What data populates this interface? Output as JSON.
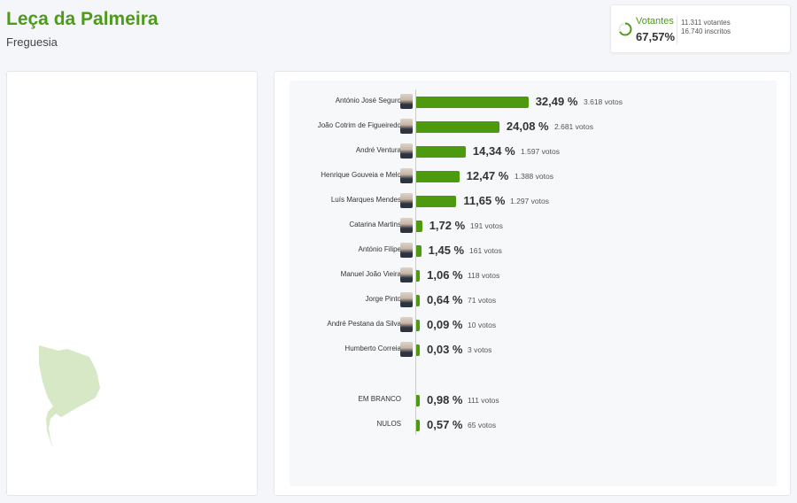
{
  "header": {
    "title": "Leça da Palmeira",
    "subtitle": "Freguesia"
  },
  "turnout": {
    "label": "Votantes",
    "percent": "67,57%",
    "percent_value": 67.57,
    "voters": "11.311 votantes",
    "registered": "16.740 inscritos"
  },
  "colors": {
    "accent": "#4e9a1a",
    "bar": "#4e9a0e",
    "map_fill": "#d7e8c6"
  },
  "results": [
    {
      "name": "António José Seguro",
      "pct": "32,49 %",
      "value": 32.49,
      "votes": "3.618 votos"
    },
    {
      "name": "João Cotrim de Figueiredo",
      "pct": "24,08 %",
      "value": 24.08,
      "votes": "2.681 votos"
    },
    {
      "name": "André Ventura",
      "pct": "14,34 %",
      "value": 14.34,
      "votes": "1.597 votos"
    },
    {
      "name": "Henrique Gouveia e Melo",
      "pct": "12,47 %",
      "value": 12.47,
      "votes": "1.388 votos"
    },
    {
      "name": "Luís Marques Mendes",
      "pct": "11,65 %",
      "value": 11.65,
      "votes": "1.297 votos"
    },
    {
      "name": "Catarina Martins",
      "pct": "1,72 %",
      "value": 1.72,
      "votes": "191 votos"
    },
    {
      "name": "António Filipe",
      "pct": "1,45 %",
      "value": 1.45,
      "votes": "161 votos"
    },
    {
      "name": "Manuel João Vieira",
      "pct": "1,06 %",
      "value": 1.06,
      "votes": "118 votos"
    },
    {
      "name": "Jorge Pinto",
      "pct": "0,64 %",
      "value": 0.64,
      "votes": "71 votos"
    },
    {
      "name": "André Pestana da Silva",
      "pct": "0,09 %",
      "value": 0.09,
      "votes": "10 votos"
    },
    {
      "name": "Humberto Correia",
      "pct": "0,03 %",
      "value": 0.03,
      "votes": "3 votos"
    }
  ],
  "other": [
    {
      "name": "EM BRANCO",
      "pct": "0,98 %",
      "value": 0.98,
      "votes": "111 votos"
    },
    {
      "name": "NULOS",
      "pct": "0,57 %",
      "value": 0.57,
      "votes": "65 votos"
    }
  ]
}
